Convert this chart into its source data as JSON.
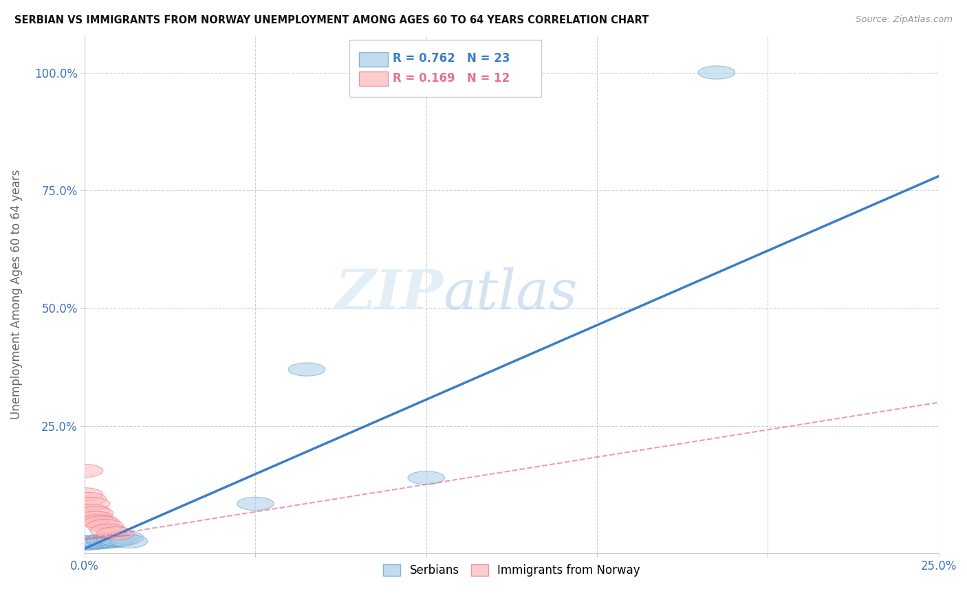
{
  "title": "SERBIAN VS IMMIGRANTS FROM NORWAY UNEMPLOYMENT AMONG AGES 60 TO 64 YEARS CORRELATION CHART",
  "source": "Source: ZipAtlas.com",
  "xlim": [
    0.0,
    0.25
  ],
  "ylim": [
    -0.02,
    1.08
  ],
  "ylabel": "Unemployment Among Ages 60 to 64 years",
  "R_serbian": 0.762,
  "N_serbian": 23,
  "R_norway": 0.169,
  "N_norway": 12,
  "serbian_color": "#a8cde8",
  "norway_color": "#fcb9b9",
  "serbian_edge_color": "#5a9ec9",
  "norway_edge_color": "#e87090",
  "serbian_line_color": "#3a7ec8",
  "norway_line_color": "#e87090",
  "watermark_zip": "ZIP",
  "watermark_atlas": "atlas",
  "serbian_x": [
    0.0,
    0.0,
    0.001,
    0.002,
    0.003,
    0.003,
    0.004,
    0.005,
    0.006,
    0.006,
    0.007,
    0.008,
    0.008,
    0.009,
    0.009,
    0.01,
    0.011,
    0.012,
    0.013,
    0.05,
    0.065,
    0.1,
    0.185
  ],
  "serbian_y": [
    0.0,
    0.003,
    0.002,
    0.001,
    0.003,
    0.005,
    0.004,
    0.003,
    0.005,
    0.008,
    0.006,
    0.005,
    0.008,
    0.007,
    0.01,
    0.008,
    0.01,
    0.013,
    0.005,
    0.085,
    0.37,
    0.14,
    1.0
  ],
  "norway_x": [
    0.0,
    0.0,
    0.001,
    0.002,
    0.002,
    0.003,
    0.003,
    0.004,
    0.005,
    0.006,
    0.007,
    0.009
  ],
  "norway_y": [
    0.155,
    0.105,
    0.095,
    0.085,
    0.07,
    0.065,
    0.055,
    0.048,
    0.045,
    0.038,
    0.028,
    0.022
  ],
  "serbian_line_x": [
    0.0,
    0.25
  ],
  "serbian_line_y": [
    -0.01,
    0.78
  ],
  "norway_line_x": [
    0.0,
    0.25
  ],
  "norway_line_y": [
    0.01,
    0.3
  ]
}
